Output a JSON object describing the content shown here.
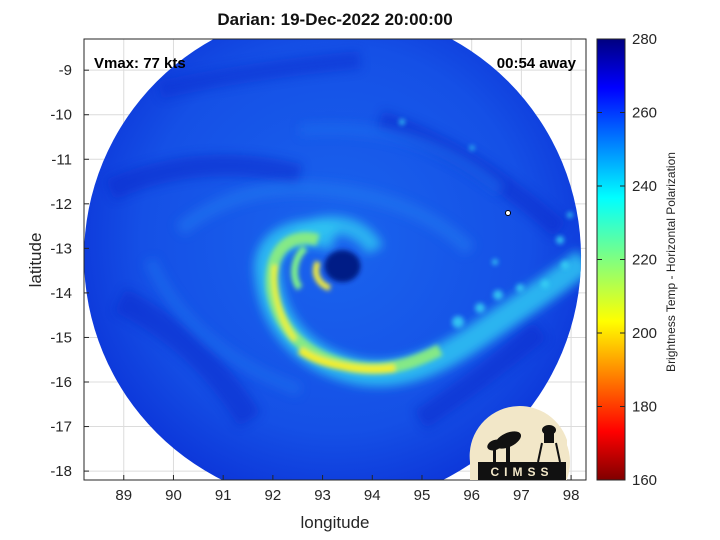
{
  "title": "Darian: 19-Dec-2022 20:00:00",
  "annotations": {
    "vmax": "Vmax: 77 kts",
    "time_away": "00:54 away"
  },
  "axes": {
    "xlabel": "longitude",
    "ylabel": "latitude",
    "x_ticks": [
      "89",
      "90",
      "91",
      "92",
      "93",
      "94",
      "95",
      "96",
      "97",
      "98"
    ],
    "y_ticks": [
      "-9",
      "-10",
      "-11",
      "-12",
      "-13",
      "-14",
      "-15",
      "-16",
      "-17",
      "-18"
    ],
    "xlim": [
      88.2,
      98.3
    ],
    "ylim": [
      -18.2,
      -8.3
    ],
    "grid": true
  },
  "colorbar": {
    "label": "Brightness Temp - Horizontal Polarization",
    "ticks": [
      "280",
      "260",
      "240",
      "220",
      "200",
      "180",
      "160"
    ],
    "range": [
      160,
      280
    ],
    "colormap": "jet"
  },
  "storm": {
    "center_lon": 93.4,
    "center_lat": -13.4,
    "swath_center_lon": 93.2,
    "swath_center_lat": -13.2,
    "swath_radius_deg": 5.0
  },
  "logo": {
    "text": "CIMSS"
  },
  "colors": {
    "background_cold": "#0a2bd6",
    "swath_mid": "#1659ea",
    "band_cyan": "#27d6f0",
    "band_yellow": "#f6ef2a",
    "eye": "#031a86"
  }
}
